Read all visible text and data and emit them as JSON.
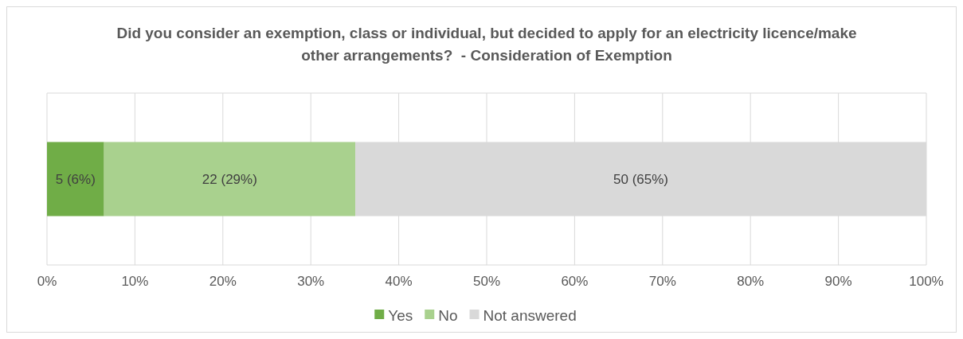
{
  "chart_data": {
    "type": "bar",
    "orientation": "horizontal",
    "stacked": true,
    "title": "Did you consider an exemption, class or individual, but decided to apply for an electricity licence/make other arrangements?  - Consideration of Exemption",
    "categories": [
      null
    ],
    "series": [
      {
        "name": "Yes",
        "color": "#70ad47",
        "values": [
          6.49
        ],
        "value_labels": [
          "5 (6%)"
        ]
      },
      {
        "name": "No",
        "color": "#a9d18e",
        "values": [
          28.57
        ],
        "value_labels": [
          "22 (29%)"
        ]
      },
      {
        "name": "Not answered",
        "color": "#d9d9d9",
        "values": [
          64.94
        ],
        "value_labels": [
          "50 (65%)"
        ]
      }
    ],
    "xlim": [
      0,
      100
    ],
    "xticks": [
      {
        "value": 0,
        "label": "0%"
      },
      {
        "value": 10,
        "label": "10%"
      },
      {
        "value": 20,
        "label": "20%"
      },
      {
        "value": 30,
        "label": "30%"
      },
      {
        "value": 40,
        "label": "40%"
      },
      {
        "value": 50,
        "label": "50%"
      },
      {
        "value": 60,
        "label": "60%"
      },
      {
        "value": 70,
        "label": "70%"
      },
      {
        "value": 80,
        "label": "80%"
      },
      {
        "value": 90,
        "label": "90%"
      },
      {
        "value": 100,
        "label": "100%"
      }
    ],
    "grid": "x",
    "legend": "bottom"
  }
}
